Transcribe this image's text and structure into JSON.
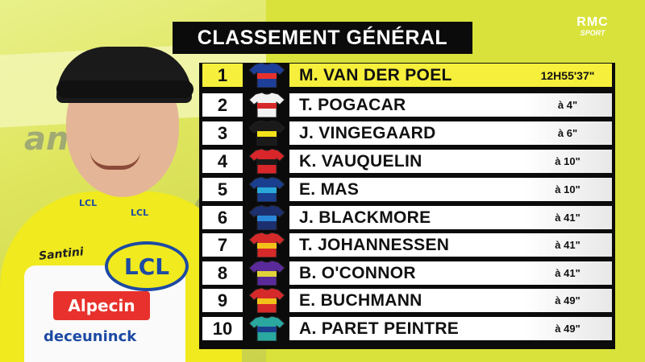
{
  "title": "CLASSEMENT GÉNÉRAL",
  "logo": {
    "line1": "RMC",
    "line2": "SPORT"
  },
  "photo_text": {
    "banner": "anl",
    "lcl_badge": "LCL",
    "alpecin": "Alpecin",
    "santini": "Santini",
    "deceuninck": "deceuninck",
    "lcl_small": "LCL"
  },
  "colors": {
    "leader": "#f6f03c",
    "background": "#d9e23a",
    "board": "#0b0b0b"
  },
  "standings": [
    {
      "pos": "1",
      "name": "M. VAN DER POEL",
      "gap": "12H55'37\"",
      "jersey": [
        "#1d3f9a",
        "#e8312c"
      ]
    },
    {
      "pos": "2",
      "name": "T. POGACAR",
      "gap": "à 4\"",
      "jersey": [
        "#f2f2f2",
        "#d62a2a"
      ]
    },
    {
      "pos": "3",
      "name": "J. VINGEGAARD",
      "gap": "à 6\"",
      "jersey": [
        "#1a1a1a",
        "#f2e21a"
      ]
    },
    {
      "pos": "4",
      "name": "K. VAUQUELIN",
      "gap": "à 10\"",
      "jersey": [
        "#d9262a",
        "#1a1a1a"
      ]
    },
    {
      "pos": "5",
      "name": "E. MAS",
      "gap": "à 10\"",
      "jersey": [
        "#1a3f8f",
        "#2aa8d8"
      ]
    },
    {
      "pos": "6",
      "name": "J. BLACKMORE",
      "gap": "à 41\"",
      "jersey": [
        "#1c2f6e",
        "#2a86d8"
      ]
    },
    {
      "pos": "7",
      "name": "T. JOHANNESSEN",
      "gap": "à 41\"",
      "jersey": [
        "#d62a2a",
        "#f2c21a"
      ]
    },
    {
      "pos": "8",
      "name": "B. O'CONNOR",
      "gap": "à 41\"",
      "jersey": [
        "#5a2a9a",
        "#e0d23a"
      ]
    },
    {
      "pos": "9",
      "name": "E. BUCHMANN",
      "gap": "à 49\"",
      "jersey": [
        "#d62a2a",
        "#f2c21a"
      ]
    },
    {
      "pos": "10",
      "name": "A. PARET PEINTRE",
      "gap": "à 49\"",
      "jersey": [
        "#2aa8a0",
        "#1a3f8f"
      ]
    }
  ]
}
